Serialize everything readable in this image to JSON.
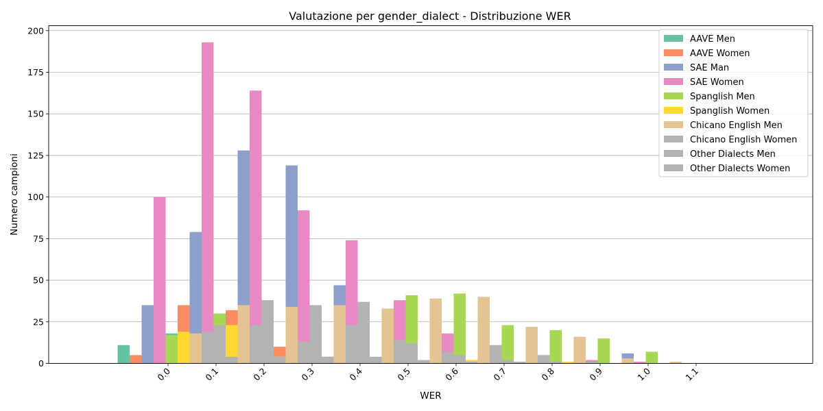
{
  "chart_data": {
    "type": "bar",
    "title": "Valutazione per gender_dialect - Distribuzione WER",
    "xlabel": "WER",
    "ylabel": "Numero campioni",
    "x_ticks": [
      "0.0",
      "0.1",
      "0.2",
      "0.3",
      "0.4",
      "0.5",
      "0.6",
      "0.7",
      "0.8",
      "0.9",
      "1.0",
      "1.1"
    ],
    "y_ticks": [
      "0",
      "25",
      "50",
      "75",
      "100",
      "125",
      "150",
      "175",
      "200"
    ],
    "ylim": [
      0,
      203
    ],
    "xlim": [
      -0.25,
      1.35
    ],
    "bin_width": 0.1,
    "bin_starts": [
      -0.1,
      0.0,
      0.1,
      0.2,
      0.3,
      0.4,
      0.5,
      0.6,
      0.7,
      0.8,
      0.9,
      1.0
    ],
    "grid": "y",
    "legend_position": "top-right",
    "series": [
      {
        "name": "AAVE Men",
        "color": "#66c2a5",
        "values": [
          11,
          18,
          17,
          4,
          4,
          5,
          0,
          4,
          0,
          2,
          1,
          0
        ]
      },
      {
        "name": "AAVE Women",
        "color": "#fc8d62",
        "values": [
          5,
          35,
          32,
          10,
          4,
          2,
          0,
          2,
          0,
          0,
          0,
          0
        ]
      },
      {
        "name": "SAE Man",
        "color": "#8da0cb",
        "values": [
          35,
          79,
          128,
          119,
          47,
          24,
          2,
          2,
          6,
          12,
          6,
          0
        ]
      },
      {
        "name": "SAE Women",
        "color": "#e78ac3",
        "values": [
          100,
          193,
          164,
          92,
          74,
          38,
          18,
          6,
          2,
          2,
          1,
          0
        ]
      },
      {
        "name": "Spanglish Men",
        "color": "#a6d854",
        "values": [
          17,
          30,
          29,
          34,
          34,
          41,
          42,
          23,
          20,
          15,
          7,
          0
        ]
      },
      {
        "name": "Spanglish Women",
        "color": "#ffd92f",
        "values": [
          19,
          23,
          4,
          4,
          2,
          2,
          2,
          1,
          1,
          0,
          0,
          0
        ]
      },
      {
        "name": "Chicano English Men",
        "color": "#e5c494",
        "values": [
          18,
          35,
          34,
          35,
          33,
          39,
          40,
          22,
          16,
          3,
          1,
          0
        ]
      },
      {
        "name": "Chicano English Women",
        "color": "#b3b3b3",
        "values": [
          19,
          23,
          13,
          23,
          14,
          7,
          11,
          5,
          1,
          0,
          0,
          0
        ]
      },
      {
        "name": "Other Dialects Men",
        "color": "#b3b3b3",
        "values": [
          23,
          38,
          35,
          37,
          12,
          5,
          2,
          1,
          0,
          0,
          0,
          0
        ]
      },
      {
        "name": "Other Dialects Women",
        "color": "#b3b3b3",
        "values": [
          4,
          4,
          4,
          4,
          2,
          1,
          1,
          0,
          0,
          0,
          0,
          0
        ]
      }
    ]
  }
}
